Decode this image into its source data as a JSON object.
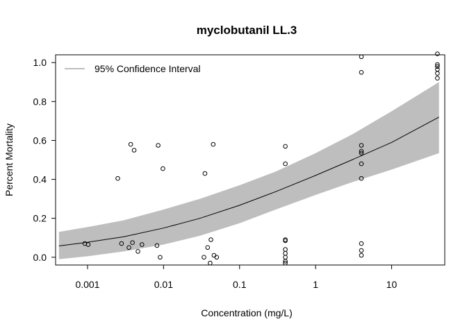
{
  "chart_data": {
    "type": "scatter",
    "title": "myclobutanil LL.3",
    "xlabel": "Concentration (mg/L)",
    "ylabel": "Percent Mortality",
    "x_scale": "log10",
    "xlim": [
      0.00038,
      50
    ],
    "ylim": [
      -0.04,
      1.04
    ],
    "x_ticks": [
      {
        "value": 0.001,
        "label": "0.001"
      },
      {
        "value": 0.01,
        "label": "0.01"
      },
      {
        "value": 0.1,
        "label": "0.1"
      },
      {
        "value": 1,
        "label": "1"
      },
      {
        "value": 10,
        "label": "10"
      }
    ],
    "y_ticks": [
      {
        "value": 0.0,
        "label": "0.0"
      },
      {
        "value": 0.2,
        "label": "0.2"
      },
      {
        "value": 0.4,
        "label": "0.4"
      },
      {
        "value": 0.6,
        "label": "0.6"
      },
      {
        "value": 0.8,
        "label": "0.8"
      },
      {
        "value": 1.0,
        "label": "1.0"
      }
    ],
    "grid": false,
    "legend": {
      "position": "top-left",
      "entries": [
        {
          "label": "95% Confidence Interval",
          "color": "#bebebe"
        }
      ]
    },
    "series": [
      {
        "name": "observed",
        "kind": "points",
        "points": [
          {
            "x": 0.00092,
            "y": 0.07
          },
          {
            "x": 0.00102,
            "y": 0.065
          },
          {
            "x": 0.0025,
            "y": 0.405
          },
          {
            "x": 0.0028,
            "y": 0.07
          },
          {
            "x": 0.0035,
            "y": 0.05
          },
          {
            "x": 0.0037,
            "y": 0.58
          },
          {
            "x": 0.0039,
            "y": 0.075
          },
          {
            "x": 0.0041,
            "y": 0.55
          },
          {
            "x": 0.0046,
            "y": 0.03
          },
          {
            "x": 0.0052,
            "y": 0.065
          },
          {
            "x": 0.0082,
            "y": 0.06
          },
          {
            "x": 0.0085,
            "y": 0.575
          },
          {
            "x": 0.009,
            "y": 0.0
          },
          {
            "x": 0.0098,
            "y": 0.455
          },
          {
            "x": 0.034,
            "y": 0.0
          },
          {
            "x": 0.035,
            "y": 0.43
          },
          {
            "x": 0.038,
            "y": 0.05
          },
          {
            "x": 0.041,
            "y": -0.03
          },
          {
            "x": 0.042,
            "y": 0.09
          },
          {
            "x": 0.045,
            "y": 0.58
          },
          {
            "x": 0.046,
            "y": 0.01
          },
          {
            "x": 0.05,
            "y": 0.0
          },
          {
            "x": 0.4,
            "y": 0.57
          },
          {
            "x": 0.4,
            "y": 0.48
          },
          {
            "x": 0.4,
            "y": 0.09
          },
          {
            "x": 0.4,
            "y": 0.085
          },
          {
            "x": 0.4,
            "y": 0.04
          },
          {
            "x": 0.4,
            "y": 0.02
          },
          {
            "x": 0.4,
            "y": 0.0
          },
          {
            "x": 0.4,
            "y": -0.02
          },
          {
            "x": 0.4,
            "y": -0.03
          },
          {
            "x": 4,
            "y": 1.03
          },
          {
            "x": 4,
            "y": 0.95
          },
          {
            "x": 4,
            "y": 0.575
          },
          {
            "x": 4,
            "y": 0.545
          },
          {
            "x": 4,
            "y": 0.535
          },
          {
            "x": 4,
            "y": 0.48
          },
          {
            "x": 4,
            "y": 0.405
          },
          {
            "x": 4,
            "y": 0.07
          },
          {
            "x": 4,
            "y": 0.035
          },
          {
            "x": 4,
            "y": 0.01
          },
          {
            "x": 40,
            "y": 1.045
          },
          {
            "x": 40,
            "y": 0.99
          },
          {
            "x": 40,
            "y": 0.98
          },
          {
            "x": 40,
            "y": 0.965
          },
          {
            "x": 40,
            "y": 0.945
          },
          {
            "x": 40,
            "y": 0.92
          }
        ]
      },
      {
        "name": "fitted",
        "kind": "line",
        "color": "#000000",
        "points": [
          {
            "x": 0.00042,
            "y": 0.058
          },
          {
            "x": 0.001,
            "y": 0.077
          },
          {
            "x": 0.003,
            "y": 0.105
          },
          {
            "x": 0.01,
            "y": 0.15
          },
          {
            "x": 0.03,
            "y": 0.2
          },
          {
            "x": 0.1,
            "y": 0.267
          },
          {
            "x": 0.3,
            "y": 0.337
          },
          {
            "x": 1,
            "y": 0.42
          },
          {
            "x": 3,
            "y": 0.5
          },
          {
            "x": 10,
            "y": 0.59
          },
          {
            "x": 42,
            "y": 0.72
          }
        ]
      },
      {
        "name": "95% Confidence Interval",
        "kind": "band",
        "color": "#bebebe",
        "points": [
          {
            "x": 0.00042,
            "lower": -0.01,
            "upper": 0.13
          },
          {
            "x": 0.001,
            "lower": 0.005,
            "upper": 0.155
          },
          {
            "x": 0.003,
            "lower": 0.03,
            "upper": 0.19
          },
          {
            "x": 0.01,
            "lower": 0.065,
            "upper": 0.245
          },
          {
            "x": 0.03,
            "lower": 0.11,
            "upper": 0.3
          },
          {
            "x": 0.1,
            "lower": 0.175,
            "upper": 0.37
          },
          {
            "x": 0.3,
            "lower": 0.245,
            "upper": 0.44
          },
          {
            "x": 1,
            "lower": 0.32,
            "upper": 0.535
          },
          {
            "x": 3,
            "lower": 0.385,
            "upper": 0.63
          },
          {
            "x": 10,
            "lower": 0.45,
            "upper": 0.75
          },
          {
            "x": 42,
            "lower": 0.535,
            "upper": 0.9
          }
        ]
      }
    ]
  }
}
